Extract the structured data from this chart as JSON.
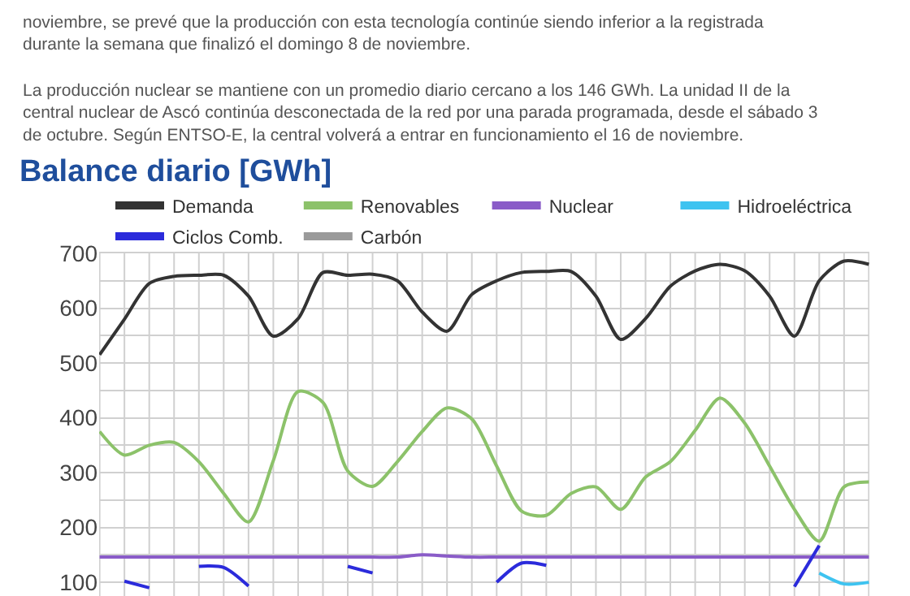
{
  "chart_data": {
    "type": "line",
    "title": "Balance diario [GWh]",
    "annotations": [
      "noviembre, se prevé que la producción con esta tecnología continúe siendo inferior a la registrada durante la semana que finalizó el domingo 8 de noviembre.",
      "La producción nuclear se mantiene con un promedio diario cercano a los 146 GWh. La unidad II de la central nuclear de Ascó continúa desconectada de la red por una parada programada, desde el sábado 3 de octubre. Según ENTSO-E, la central volverá a entrar en funcionamiento el 16 de noviembre."
    ],
    "categories": [
      null,
      null,
      null,
      null,
      null,
      null,
      null,
      null,
      null,
      null,
      null,
      null,
      null,
      null,
      null,
      null,
      null,
      null,
      null,
      null,
      null,
      null,
      null,
      null,
      null,
      null,
      null,
      null,
      null,
      null,
      null,
      null
    ],
    "series": [
      {
        "name": "Demanda",
        "color": "#333333",
        "values": [
          515,
          580,
          645,
          658,
          660,
          660,
          622,
          549,
          581,
          665,
          660,
          662,
          650,
          593,
          558,
          625,
          650,
          665,
          667,
          667,
          622,
          543,
          581,
          640,
          668,
          680,
          668,
          622,
          549,
          650,
          686,
          680
        ]
      },
      {
        "name": "Renovables",
        "color": "#8cc26a",
        "values": [
          375,
          332,
          350,
          355,
          320,
          262,
          210,
          322,
          448,
          428,
          303,
          275,
          320,
          375,
          418,
          398,
          312,
          230,
          222,
          262,
          274,
          233,
          292,
          320,
          377,
          436,
          390,
          312,
          233,
          175,
          274,
          283
        ]
      },
      {
        "name": "Nuclear",
        "color": "#8a5cc8",
        "values": [
          146,
          146,
          146,
          146,
          146,
          146,
          146,
          146,
          146,
          146,
          146,
          146,
          146,
          150,
          148,
          146,
          146,
          146,
          146,
          146,
          146,
          146,
          146,
          146,
          146,
          146,
          146,
          146,
          146,
          146,
          146,
          146
        ]
      },
      {
        "name": "Hidroeléctrica",
        "color": "#3ec3f0",
        "values": [
          null,
          null,
          null,
          null,
          null,
          null,
          null,
          null,
          null,
          null,
          null,
          null,
          null,
          null,
          null,
          null,
          null,
          null,
          null,
          null,
          null,
          null,
          null,
          null,
          null,
          null,
          null,
          null,
          null,
          117,
          97,
          100
        ]
      },
      {
        "name": "Ciclos Comb.",
        "color": "#2b2bdb",
        "values": [
          null,
          102,
          90,
          null,
          129,
          127,
          93,
          null,
          null,
          null,
          129,
          117,
          null,
          null,
          null,
          null,
          100,
          135,
          131,
          null,
          null,
          null,
          null,
          null,
          null,
          null,
          null,
          null,
          92,
          167,
          null,
          null
        ]
      },
      {
        "name": "Carbón",
        "color": "#9a9a9a",
        "values": [
          null,
          null,
          null,
          null,
          null,
          null,
          null,
          null,
          null,
          null,
          null,
          null,
          null,
          null,
          null,
          null,
          null,
          null,
          null,
          null,
          null,
          null,
          null,
          null,
          null,
          null,
          null,
          null,
          null,
          null,
          null,
          null
        ]
      }
    ],
    "ylim": [
      75,
      700
    ],
    "yticks": [
      100,
      {
        "value": 150,
        "label": null
      },
      200,
      {
        "value": 250,
        "label": null
      },
      300,
      {
        "value": 350,
        "label": null
      },
      400,
      {
        "value": 450,
        "label": null
      },
      500,
      {
        "value": 550,
        "label": null
      },
      600,
      {
        "value": 650,
        "label": null
      },
      700
    ],
    "grid": true,
    "legend": "top",
    "marker": "none",
    "line_style": "solid"
  }
}
